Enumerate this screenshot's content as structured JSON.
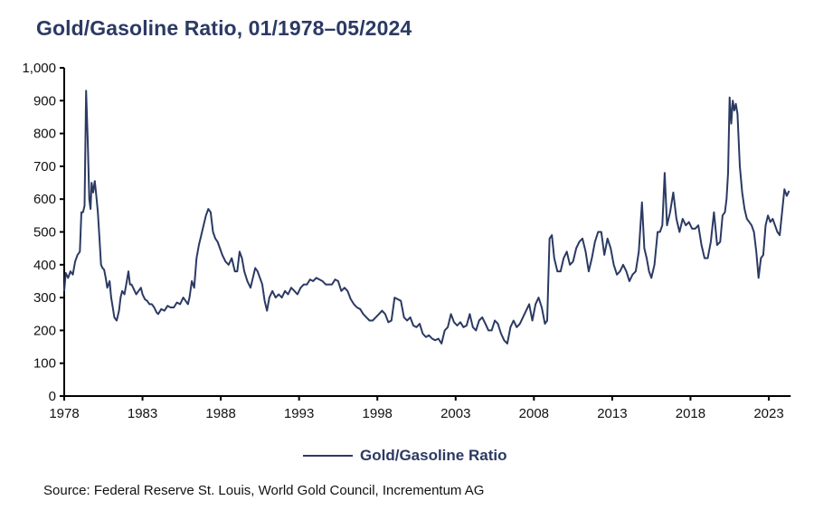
{
  "title": "Gold/Gasoline Ratio, 01/1978–05/2024",
  "source": "Source: Federal Reserve St. Louis, World Gold Council, Incrementum AG",
  "chart_data": {
    "type": "line",
    "title": "Gold/Gasoline Ratio, 01/1978–05/2024",
    "xlabel": "",
    "ylabel": "",
    "xlim": [
      1978,
      2024.4
    ],
    "ylim": [
      0,
      1000
    ],
    "grid": false,
    "legend_position": "bottom-center",
    "x_ticks": [
      1978,
      1983,
      1988,
      1993,
      1998,
      2003,
      2008,
      2013,
      2018,
      2023
    ],
    "x_tick_labels": [
      "1978",
      "1983",
      "1988",
      "1993",
      "1998",
      "2003",
      "2008",
      "2013",
      "2018",
      "2023"
    ],
    "y_ticks": [
      0,
      100,
      200,
      300,
      400,
      500,
      600,
      700,
      800,
      900,
      1000
    ],
    "y_tick_labels": [
      "0",
      "100",
      "200",
      "300",
      "400",
      "500",
      "600",
      "700",
      "800",
      "900",
      "1,000"
    ],
    "color": "#2b3a63",
    "series": [
      {
        "name": "Gold/Gasoline Ratio",
        "x": [
          1978.0,
          1978.1,
          1978.25,
          1978.4,
          1978.55,
          1978.7,
          1978.85,
          1979.0,
          1979.1,
          1979.2,
          1979.3,
          1979.4,
          1979.5,
          1979.6,
          1979.68,
          1979.75,
          1979.85,
          1979.95,
          1980.05,
          1980.15,
          1980.25,
          1980.35,
          1980.45,
          1980.55,
          1980.65,
          1980.75,
          1980.9,
          1981.0,
          1981.1,
          1981.2,
          1981.35,
          1981.5,
          1981.6,
          1981.7,
          1981.85,
          1982.0,
          1982.1,
          1982.2,
          1982.3,
          1982.4,
          1982.5,
          1982.6,
          1982.75,
          1982.9,
          1983.0,
          1983.15,
          1983.3,
          1983.45,
          1983.6,
          1983.75,
          1983.9,
          1984.0,
          1984.2,
          1984.4,
          1984.6,
          1984.8,
          1985.0,
          1985.2,
          1985.4,
          1985.6,
          1985.75,
          1985.9,
          1986.0,
          1986.15,
          1986.3,
          1986.45,
          1986.6,
          1986.75,
          1986.9,
          1987.05,
          1987.2,
          1987.35,
          1987.5,
          1987.65,
          1987.8,
          1987.95,
          1988.1,
          1988.3,
          1988.5,
          1988.7,
          1988.9,
          1989.05,
          1989.2,
          1989.35,
          1989.5,
          1989.7,
          1989.9,
          1990.05,
          1990.2,
          1990.35,
          1990.5,
          1990.65,
          1990.8,
          1990.95,
          1991.1,
          1991.3,
          1991.5,
          1991.7,
          1991.9,
          1992.1,
          1992.3,
          1992.5,
          1992.7,
          1992.9,
          1993.1,
          1993.3,
          1993.5,
          1993.7,
          1993.9,
          1994.1,
          1994.3,
          1994.5,
          1994.7,
          1994.9,
          1995.1,
          1995.3,
          1995.5,
          1995.7,
          1995.9,
          1996.1,
          1996.3,
          1996.5,
          1996.7,
          1996.9,
          1997.1,
          1997.3,
          1997.5,
          1997.7,
          1997.9,
          1998.1,
          1998.3,
          1998.5,
          1998.7,
          1998.9,
          1999.1,
          1999.3,
          1999.5,
          1999.7,
          1999.9,
          2000.1,
          2000.3,
          2000.5,
          2000.7,
          2000.9,
          2001.1,
          2001.3,
          2001.5,
          2001.7,
          2001.9,
          2002.1,
          2002.3,
          2002.5,
          2002.7,
          2002.9,
          2003.1,
          2003.3,
          2003.5,
          2003.7,
          2003.9,
          2004.1,
          2004.3,
          2004.5,
          2004.7,
          2004.9,
          2005.1,
          2005.3,
          2005.5,
          2005.7,
          2005.9,
          2006.1,
          2006.3,
          2006.5,
          2006.7,
          2006.9,
          2007.1,
          2007.3,
          2007.5,
          2007.7,
          2007.9,
          2008.1,
          2008.3,
          2008.5,
          2008.7,
          2008.85,
          2009.0,
          2009.15,
          2009.3,
          2009.5,
          2009.7,
          2009.9,
          2010.1,
          2010.3,
          2010.5,
          2010.7,
          2010.9,
          2011.1,
          2011.3,
          2011.5,
          2011.7,
          2011.9,
          2012.1,
          2012.3,
          2012.5,
          2012.7,
          2012.9,
          2013.1,
          2013.3,
          2013.5,
          2013.7,
          2013.9,
          2014.1,
          2014.3,
          2014.5,
          2014.7,
          2014.9,
          2015.05,
          2015.2,
          2015.35,
          2015.5,
          2015.7,
          2015.9,
          2016.05,
          2016.2,
          2016.35,
          2016.5,
          2016.7,
          2016.9,
          2017.1,
          2017.3,
          2017.5,
          2017.7,
          2017.9,
          2018.1,
          2018.3,
          2018.5,
          2018.7,
          2018.9,
          2019.1,
          2019.3,
          2019.5,
          2019.7,
          2019.9,
          2020.05,
          2020.2,
          2020.3,
          2020.4,
          2020.5,
          2020.6,
          2020.7,
          2020.8,
          2020.9,
          2021.0,
          2021.15,
          2021.3,
          2021.45,
          2021.6,
          2021.75,
          2021.9,
          2022.05,
          2022.2,
          2022.35,
          2022.5,
          2022.65,
          2022.8,
          2022.95,
          2023.1,
          2023.25,
          2023.4,
          2023.55,
          2023.7,
          2023.85,
          2024.0,
          2024.15,
          2024.3
        ],
        "values": [
          320,
          375,
          360,
          380,
          370,
          410,
          430,
          440,
          560,
          560,
          580,
          930,
          780,
          600,
          570,
          650,
          620,
          655,
          610,
          560,
          480,
          400,
          390,
          385,
          360,
          330,
          350,
          300,
          270,
          240,
          230,
          260,
          300,
          320,
          310,
          350,
          380,
          340,
          340,
          330,
          320,
          310,
          320,
          330,
          310,
          295,
          290,
          280,
          280,
          270,
          255,
          250,
          265,
          260,
          275,
          270,
          270,
          285,
          280,
          300,
          290,
          280,
          300,
          350,
          330,
          420,
          460,
          490,
          520,
          550,
          570,
          560,
          500,
          480,
          470,
          450,
          430,
          410,
          400,
          420,
          380,
          380,
          440,
          420,
          380,
          350,
          330,
          360,
          390,
          380,
          360,
          340,
          290,
          260,
          300,
          320,
          300,
          310,
          300,
          320,
          310,
          330,
          320,
          310,
          330,
          340,
          340,
          355,
          350,
          360,
          355,
          350,
          340,
          340,
          340,
          355,
          350,
          320,
          330,
          320,
          295,
          280,
          270,
          265,
          250,
          240,
          230,
          230,
          240,
          250,
          260,
          250,
          225,
          230,
          300,
          295,
          290,
          240,
          230,
          240,
          215,
          210,
          220,
          190,
          180,
          185,
          175,
          170,
          175,
          160,
          200,
          210,
          250,
          225,
          215,
          225,
          210,
          215,
          250,
          210,
          200,
          230,
          240,
          220,
          200,
          200,
          230,
          220,
          190,
          170,
          160,
          210,
          230,
          210,
          220,
          240,
          260,
          280,
          230,
          280,
          300,
          270,
          220,
          230,
          480,
          490,
          420,
          380,
          380,
          420,
          440,
          400,
          410,
          450,
          470,
          480,
          440,
          380,
          420,
          470,
          500,
          500,
          430,
          480,
          450,
          400,
          370,
          380,
          400,
          380,
          350,
          370,
          380,
          440,
          590,
          450,
          420,
          380,
          360,
          400,
          500,
          500,
          520,
          680,
          520,
          560,
          620,
          540,
          500,
          540,
          520,
          530,
          510,
          510,
          520,
          460,
          420,
          420,
          470,
          560,
          460,
          470,
          550,
          560,
          600,
          680,
          910,
          830,
          900,
          870,
          890,
          860,
          700,
          620,
          570,
          540,
          530,
          520,
          500,
          440,
          360,
          420,
          430,
          520,
          550,
          530,
          540,
          520,
          500,
          490,
          560,
          630,
          610,
          625
        ]
      }
    ]
  }
}
